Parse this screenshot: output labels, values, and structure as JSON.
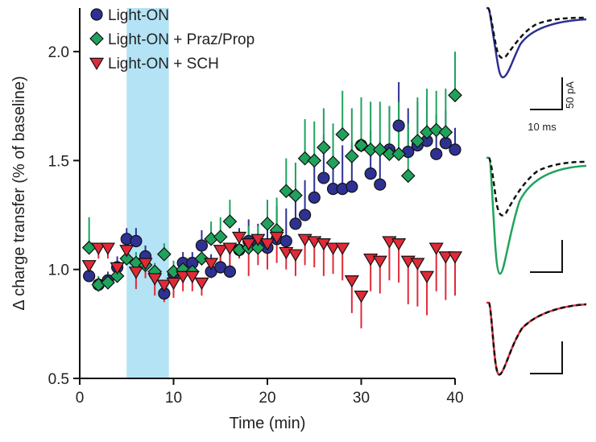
{
  "chart_data": {
    "type": "scatter",
    "xlabel": "Time (min)",
    "ylabel": "Δ charge transfer (% of baseline)",
    "xlim": [
      0,
      40
    ],
    "ylim": [
      0.5,
      2.2
    ],
    "xticks": [
      0,
      10,
      20,
      30,
      40
    ],
    "yticks": [
      0.5,
      1.0,
      1.5,
      2.0
    ],
    "ytick_labels": [
      "0.5",
      "1.0",
      "1.5",
      "2.0"
    ],
    "legend_position": "top-left",
    "grid": false,
    "shaded_region": {
      "x_start": 5,
      "x_end": 9.5,
      "color": "#b3e3f5"
    },
    "series": [
      {
        "name": "Light-ON",
        "marker": "circle",
        "color": "#2e3192",
        "error_direction": "up",
        "x": [
          1,
          2,
          3,
          4,
          5,
          6,
          7,
          8,
          9,
          10,
          11,
          12,
          13,
          14,
          15,
          16,
          17,
          18,
          19,
          20,
          21,
          22,
          23,
          24,
          25,
          26,
          27,
          28,
          29,
          30,
          31,
          32,
          33,
          34,
          35,
          36,
          37,
          38,
          39,
          40
        ],
        "y": [
          0.97,
          0.93,
          0.95,
          1.01,
          1.14,
          1.13,
          1.06,
          0.98,
          0.89,
          0.98,
          1.03,
          1.03,
          1.11,
          0.99,
          1.01,
          0.99,
          1.09,
          1.13,
          1.11,
          1.1,
          1.14,
          1.13,
          1.21,
          1.25,
          1.33,
          1.42,
          1.37,
          1.37,
          1.38,
          1.57,
          1.44,
          1.39,
          1.55,
          1.66,
          1.54,
          1.57,
          1.59,
          1.53,
          1.58,
          1.55
        ],
        "err": [
          0.06,
          0.03,
          0.04,
          0.05,
          0.05,
          0.06,
          0.05,
          0.04,
          0.04,
          0.06,
          0.05,
          0.05,
          0.07,
          0.08,
          0.08,
          0.1,
          0.1,
          0.1,
          0.1,
          0.12,
          0.15,
          0.15,
          0.15,
          0.16,
          0.2,
          0.2,
          0.18,
          0.2,
          0.2,
          0.2,
          0.2,
          0.2,
          0.2,
          0.2,
          0.2,
          0.2,
          0.18,
          0.18,
          0.15,
          0.1
        ]
      },
      {
        "name": "Light-ON + Praz/Prop",
        "marker": "diamond",
        "color": "#1fa35c",
        "error_direction": "up",
        "x": [
          1,
          2,
          3,
          4,
          5,
          6,
          7,
          8,
          9,
          10,
          11,
          12,
          13,
          14,
          15,
          16,
          17,
          18,
          19,
          20,
          21,
          22,
          23,
          24,
          25,
          26,
          27,
          28,
          29,
          30,
          31,
          32,
          33,
          34,
          35,
          36,
          37,
          38,
          39,
          40
        ],
        "y": [
          1.1,
          0.93,
          0.94,
          0.97,
          1.05,
          1.03,
          1.02,
          0.99,
          1.07,
          0.99,
          1.0,
          0.99,
          1.05,
          1.14,
          1.15,
          1.22,
          1.09,
          1.1,
          1.1,
          1.21,
          1.18,
          1.36,
          1.34,
          1.51,
          1.5,
          1.56,
          1.49,
          1.62,
          1.52,
          1.57,
          1.55,
          1.55,
          1.53,
          1.53,
          1.43,
          1.59,
          1.63,
          1.64,
          1.63,
          1.8
        ],
        "err": [
          0.14,
          0.04,
          0.04,
          0.04,
          0.05,
          0.05,
          0.04,
          0.04,
          0.05,
          0.05,
          0.05,
          0.06,
          0.07,
          0.08,
          0.09,
          0.1,
          0.08,
          0.1,
          0.1,
          0.11,
          0.15,
          0.15,
          0.15,
          0.18,
          0.18,
          0.18,
          0.18,
          0.2,
          0.22,
          0.22,
          0.22,
          0.22,
          0.22,
          0.24,
          0.24,
          0.2,
          0.2,
          0.18,
          0.2,
          0.2
        ]
      },
      {
        "name": "Light-ON + SCH",
        "marker": "triangle-down",
        "color": "#e02a38",
        "error_direction": "down",
        "x": [
          1,
          2,
          3,
          4,
          5,
          6,
          7,
          8,
          9,
          10,
          11,
          12,
          13,
          14,
          15,
          16,
          17,
          18,
          19,
          20,
          21,
          22,
          23,
          24,
          25,
          26,
          27,
          28,
          29,
          30,
          31,
          32,
          33,
          34,
          35,
          36,
          37,
          38,
          39,
          40
        ],
        "y": [
          1.02,
          1.1,
          1.1,
          1.01,
          1.09,
          0.99,
          1.03,
          0.96,
          0.93,
          0.94,
          0.97,
          0.97,
          0.94,
          1.03,
          1.09,
          1.1,
          1.15,
          1.12,
          1.14,
          1.12,
          1.15,
          1.08,
          1.07,
          1.14,
          1.13,
          1.12,
          1.1,
          1.1,
          0.95,
          0.88,
          1.05,
          1.04,
          1.13,
          1.12,
          1.04,
          1.03,
          0.97,
          1.1,
          1.06,
          1.06
        ],
        "err": [
          0.07,
          0.05,
          0.05,
          0.05,
          0.06,
          0.08,
          0.07,
          0.08,
          0.08,
          0.07,
          0.07,
          0.07,
          0.06,
          0.07,
          0.1,
          0.1,
          0.1,
          0.15,
          0.12,
          0.12,
          0.12,
          0.08,
          0.1,
          0.12,
          0.12,
          0.15,
          0.12,
          0.15,
          0.15,
          0.15,
          0.15,
          0.15,
          0.18,
          0.18,
          0.2,
          0.2,
          0.18,
          0.2,
          0.2,
          0.18
        ]
      }
    ]
  },
  "insets": {
    "scale_bar_current": "50 pA",
    "scale_bar_time": "10 ms",
    "traces": [
      {
        "solid_color": "#2e3192",
        "dashed_color": "#111111"
      },
      {
        "solid_color": "#1fa35c",
        "dashed_color": "#111111"
      },
      {
        "solid_color": "#e02a38",
        "dashed_color": "#111111"
      }
    ]
  }
}
